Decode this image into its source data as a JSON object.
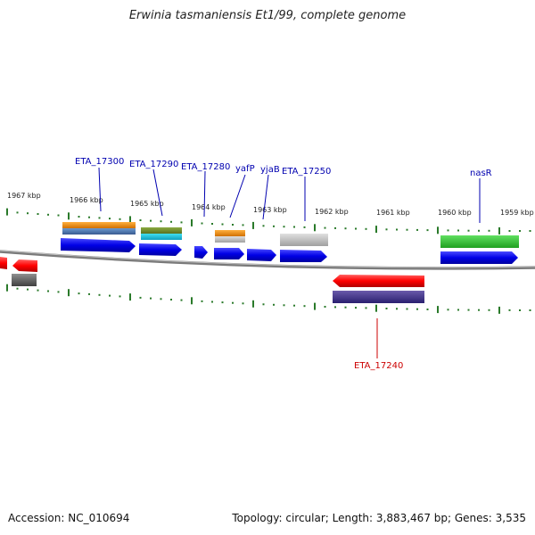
{
  "title": "Erwinia tasmaniensis Et1/99, complete genome",
  "footer": {
    "accession": "Accession: NC_010694",
    "summary": "Topology: circular; Length: 3,883,467 bp; Genes: 3,535"
  },
  "colors": {
    "forward_strand": "#0000e6",
    "reverse_strand": "#ff0000",
    "backbone": "#808080",
    "tick": "#2a7a2a",
    "label_forward": "#0000b0",
    "label_reverse": "#cc0000"
  },
  "scale_labels": [
    "1967 kbp",
    "1966 kbp",
    "1965 kbp",
    "1964 kbp",
    "1963 kbp",
    "1962 kbp",
    "1961 kbp",
    "1960 kbp",
    "1959 kbp"
  ],
  "gene_labels": [
    {
      "text": "ETA_17300",
      "strand": "forward"
    },
    {
      "text": "ETA_17290",
      "strand": "forward"
    },
    {
      "text": "ETA_17280",
      "strand": "forward"
    },
    {
      "text": "yafP",
      "strand": "forward"
    },
    {
      "text": "yjaB",
      "strand": "forward"
    },
    {
      "text": "ETA_17250",
      "strand": "forward"
    },
    {
      "text": "nasR",
      "strand": "forward"
    },
    {
      "text": "ETA_17240",
      "strand": "reverse"
    }
  ]
}
